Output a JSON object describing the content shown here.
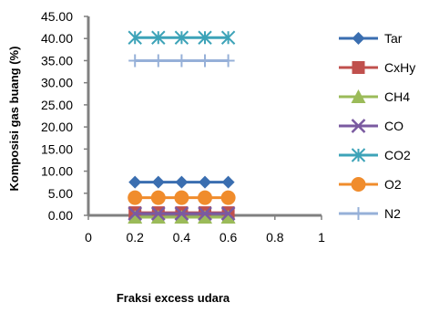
{
  "chart_data": {
    "type": "scatter",
    "title": "",
    "xlabel": "Fraksi excess udara",
    "ylabel": "Komposisi gas buang (%)",
    "xlim": [
      0,
      1
    ],
    "ylim": [
      0,
      45
    ],
    "x_ticks": [
      "0",
      "0.2",
      "0.4",
      "0.6",
      "0.8",
      "1"
    ],
    "y_ticks": [
      "0.00",
      "5.00",
      "10.00",
      "15.00",
      "20.00",
      "25.00",
      "30.00",
      "35.00",
      "40.00",
      "45.00"
    ],
    "grid": false,
    "legend_position": "right",
    "x": [
      0.2,
      0.3,
      0.4,
      0.5,
      0.6
    ],
    "series": [
      {
        "name": "Tar",
        "values": [
          7.5,
          7.5,
          7.5,
          7.5,
          7.5
        ],
        "color": "#3a6eb0",
        "marker": "diamond"
      },
      {
        "name": "CxHy",
        "values": [
          0.6,
          0.6,
          0.6,
          0.6,
          0.6
        ],
        "color": "#c0504d",
        "marker": "square"
      },
      {
        "name": "CH4",
        "values": [
          -0.4,
          -0.4,
          -0.4,
          -0.4,
          -0.4
        ],
        "color": "#9bbb59",
        "marker": "triangle"
      },
      {
        "name": "CO",
        "values": [
          0.4,
          0.4,
          0.4,
          0.4,
          0.4
        ],
        "color": "#7a5aa0",
        "marker": "x"
      },
      {
        "name": "CO2",
        "values": [
          40.2,
          40.2,
          40.2,
          40.2,
          40.2
        ],
        "color": "#3da3b8",
        "marker": "asterisk"
      },
      {
        "name": "O2",
        "values": [
          4.0,
          4.0,
          4.0,
          4.0,
          4.0
        ],
        "color": "#f08c2c",
        "marker": "circle"
      },
      {
        "name": "N2",
        "values": [
          35.0,
          35.0,
          35.0,
          35.0,
          35.0
        ],
        "color": "#96b0d8",
        "marker": "plus"
      }
    ]
  }
}
